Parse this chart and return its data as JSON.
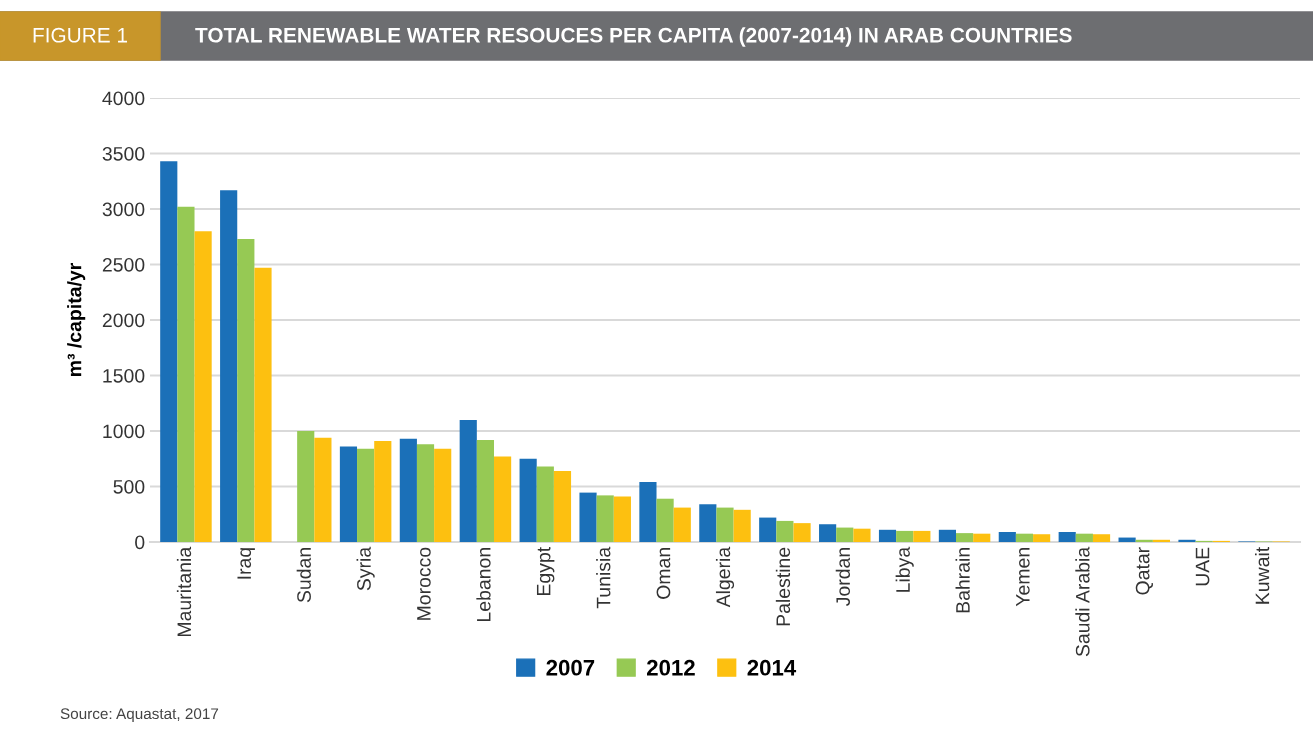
{
  "chart_data": {
    "type": "bar",
    "title": "TOTAL RENEWABLE WATER RESOUCES PER CAPITA (2007-2014) IN ARAB COUNTRIES",
    "subtitle": "FIGURE 1",
    "ylabel": "m³ /capita/yr",
    "categories": [
      "Mauritania",
      "Iraq",
      "Sudan",
      "Syria",
      "Morocco",
      "Lebanon",
      "Egypt",
      "Tunisia",
      "Oman",
      "Algeria",
      "Palestine",
      "Jordan",
      "Libya",
      "Bahrain",
      "Yemen",
      "Saudi Arabia",
      "Qatar",
      "UAE",
      "Kuwait"
    ],
    "series": [
      {
        "name": "2007",
        "color": "#1b70b8",
        "values": [
          3430,
          3170,
          null,
          860,
          930,
          1100,
          750,
          445,
          540,
          340,
          220,
          160,
          110,
          110,
          90,
          90,
          40,
          20,
          5
        ]
      },
      {
        "name": "2012",
        "color": "#96c954",
        "values": [
          3020,
          2730,
          1000,
          840,
          880,
          920,
          680,
          420,
          390,
          310,
          190,
          130,
          100,
          80,
          75,
          75,
          20,
          10,
          5
        ]
      },
      {
        "name": "2014",
        "color": "#fdc010",
        "values": [
          2800,
          2470,
          940,
          910,
          840,
          770,
          640,
          410,
          310,
          290,
          170,
          120,
          100,
          75,
          70,
          70,
          20,
          10,
          5
        ]
      }
    ],
    "ylim": [
      0,
      4000
    ],
    "yticks": [
      0,
      500,
      1000,
      1500,
      2000,
      2500,
      3000,
      3500,
      4000
    ],
    "grid": "y",
    "legend": "bottom",
    "annotations": [
      "Source: Aquastat, 2017"
    ]
  }
}
